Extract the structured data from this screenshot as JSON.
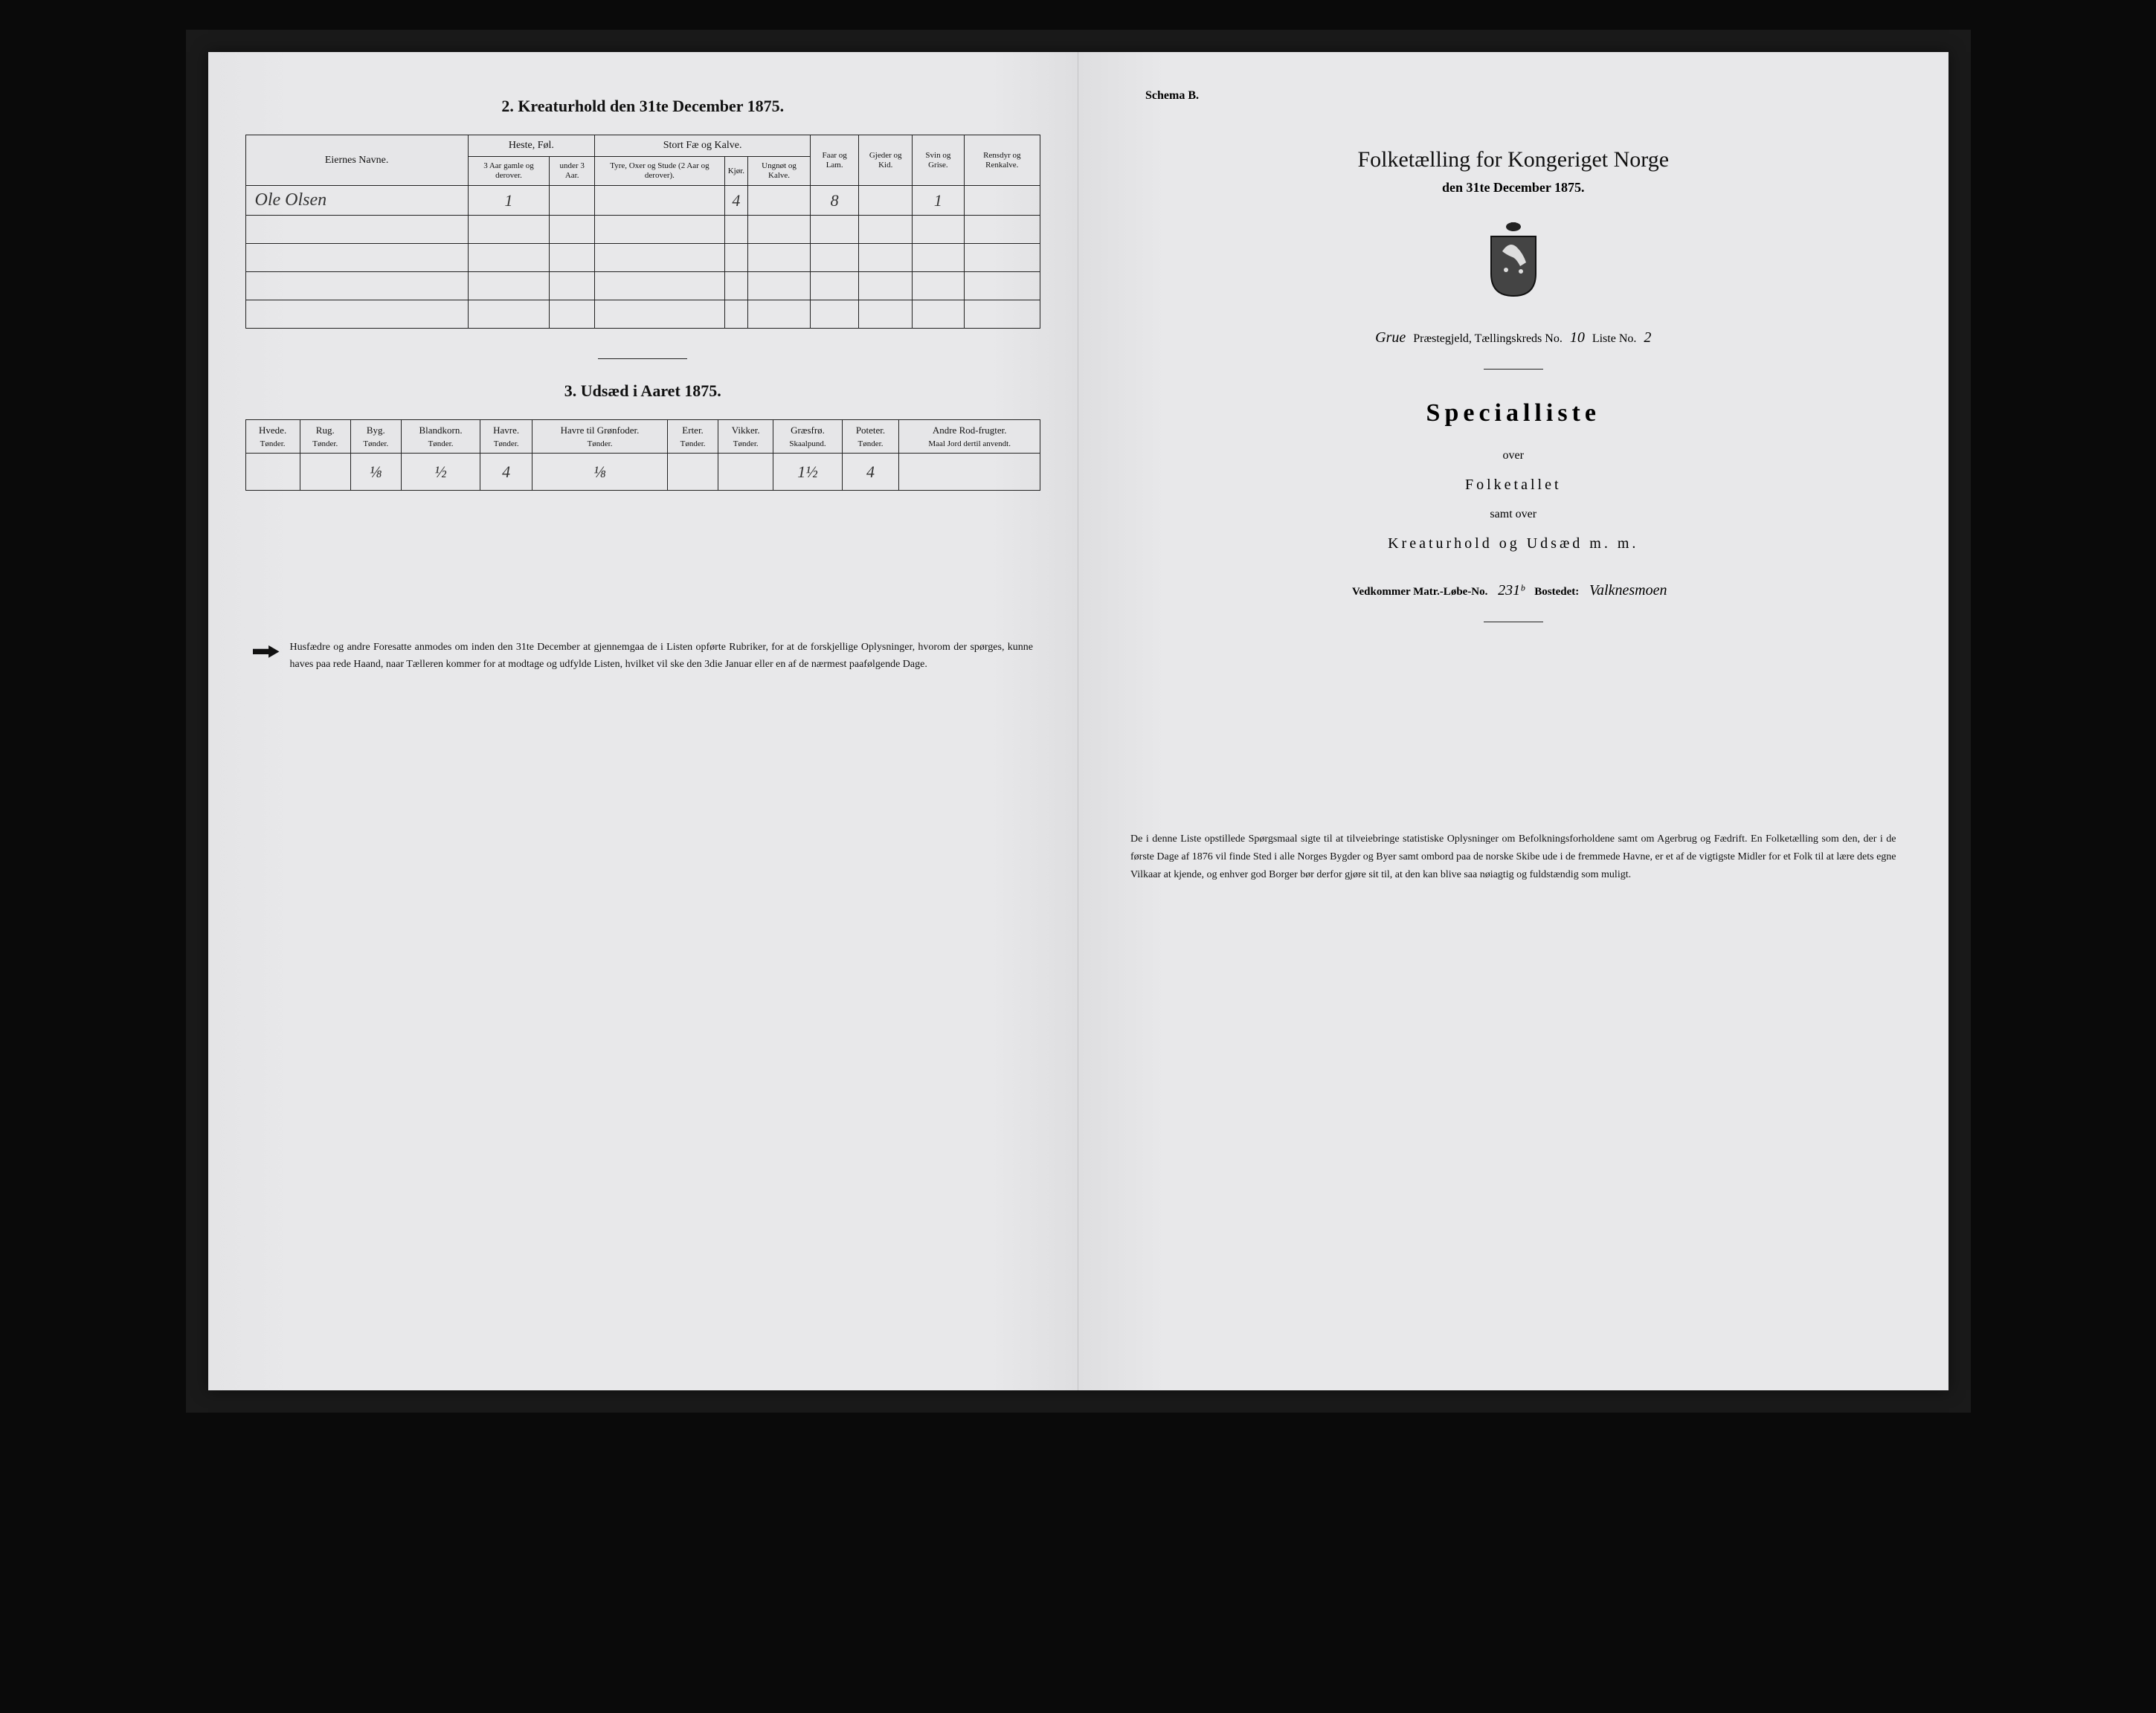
{
  "left": {
    "section2_title": "2.  Kreaturhold den 31te December 1875.",
    "table2": {
      "col_name": "Eiernes Navne.",
      "group_heste": "Heste, Føl.",
      "group_stort": "Stort Fæ og Kalve.",
      "col_faar": "Faar og Lam.",
      "col_gjeder": "Gjeder og Kid.",
      "col_svin": "Svin og Grise.",
      "col_rensdyr": "Rensdyr og Renkalve.",
      "sub_heste1": "3 Aar gamle og derover.",
      "sub_heste2": "under 3 Aar.",
      "sub_stort1": "Tyre, Oxer og Stude (2 Aar og derover).",
      "sub_stort2": "Kjør.",
      "sub_stort3": "Ungnøt og Kalve.",
      "rows": [
        {
          "name": "Ole Olsen",
          "heste1": "1",
          "heste2": "",
          "stort1": "",
          "stort2": "4",
          "stort3": "",
          "faar": "8",
          "gjeder": "",
          "svin": "1",
          "rensdyr": ""
        }
      ]
    },
    "section3_title": "3.  Udsæd i Aaret 1875.",
    "table3": {
      "headers": [
        {
          "h": "Hvede.",
          "s": "Tønder."
        },
        {
          "h": "Rug.",
          "s": "Tønder."
        },
        {
          "h": "Byg.",
          "s": "Tønder."
        },
        {
          "h": "Blandkorn.",
          "s": "Tønder."
        },
        {
          "h": "Havre.",
          "s": "Tønder."
        },
        {
          "h": "Havre til Grønfoder.",
          "s": "Tønder."
        },
        {
          "h": "Erter.",
          "s": "Tønder."
        },
        {
          "h": "Vikker.",
          "s": "Tønder."
        },
        {
          "h": "Græsfrø.",
          "s": "Skaalpund."
        },
        {
          "h": "Poteter.",
          "s": "Tønder."
        },
        {
          "h": "Andre Rod-frugter.",
          "s": "Maal Jord dertil anvendt."
        }
      ],
      "row": [
        "",
        "",
        "⅛",
        "½",
        "4",
        "⅛",
        "",
        "",
        "1½",
        "4",
        ""
      ]
    },
    "footnote": "Husfædre og andre Foresatte anmodes om inden den 31te December at gjennemgaa de i Listen opførte Rubriker, for at de forskjellige Oplysninger, hvorom der spørges, kunne haves paa rede Haand, naar Tælleren kommer for at modtage og udfylde Listen, hvilket vil ske den 3die Januar eller en af de nærmest paafølgende Dage."
  },
  "right": {
    "schema": "Schema B.",
    "main_title": "Folketælling for Kongeriget Norge",
    "subtitle": "den 31te December 1875.",
    "parish_prefix": "Grue",
    "parish_label": " Præstegjeld, Tællingskreds No. ",
    "kreds_no": "10",
    "liste_label": "     Liste No. ",
    "liste_no": "2",
    "special": "Specialliste",
    "over1": "over",
    "over2": "Folketallet",
    "over3": "samt over",
    "over4": "Kreaturhold og Udsæd m. m.",
    "matr_label1": "Vedkommer Matr.-Løbe-No. ",
    "matr_no": "231ᵇ",
    "matr_label2": "     Bostedet: ",
    "bosted": "Valknesmoen",
    "bottom": "De i denne Liste opstillede Spørgsmaal sigte til at tilveiebringe statistiske Oplysninger om Befolkningsforholdene samt om Agerbrug og Fædrift.  En Folketælling som den, der i de første Dage af 1876 vil finde Sted i alle Norges Bygder og Byer samt ombord paa de norske Skibe ude i de fremmede Havne, er et af de vigtigste Midler for et Folk til at lære dets egne Vilkaar at kjende, og enhver god Borger bør derfor gjøre sit til, at den kan blive saa nøiagtig og fuldstændig som muligt."
  },
  "colors": {
    "paper": "#e8e8ea",
    "ink": "#111111",
    "frame": "#0a0a0a"
  }
}
